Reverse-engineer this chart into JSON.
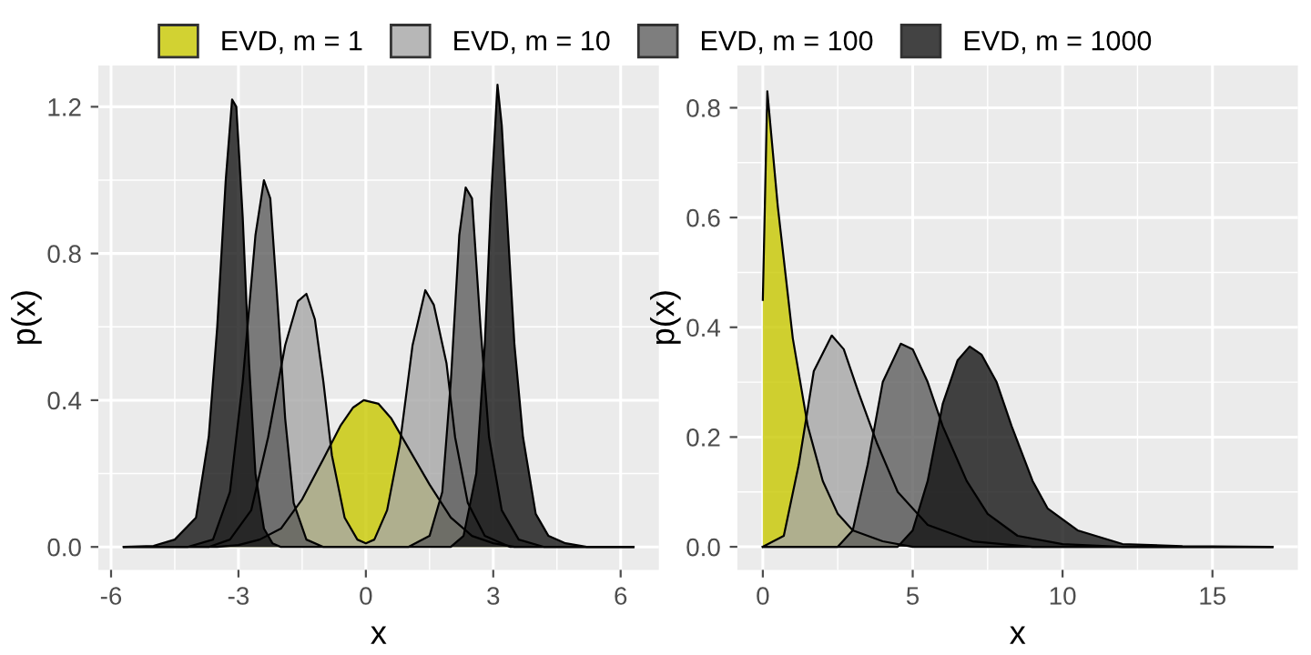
{
  "chart_data": [
    {
      "type": "area",
      "xlabel": "x",
      "ylabel": "p(x)",
      "grid": true,
      "legend": "top",
      "xlim": [
        -6.3,
        6.9
      ],
      "ylim": [
        -0.0625,
        1.3125
      ],
      "xticks": [
        -6,
        -3,
        0,
        3,
        6
      ],
      "yticks": [
        {
          "value": 0,
          "label": "0.0"
        },
        0.4,
        0.8,
        1.2
      ],
      "series": [
        {
          "name": "EVD, m = 1",
          "color": "#c8c800",
          "x": [
            -5.7,
            -3.5,
            -3,
            -2.5,
            -2,
            -1.5,
            -1,
            -0.6,
            -0.3,
            -0.05,
            0.3,
            0.6,
            1.0,
            1.5,
            2.0,
            2.5,
            3.0,
            3.5,
            6.3
          ],
          "values": [
            0,
            0,
            0.005,
            0.02,
            0.05,
            0.13,
            0.24,
            0.33,
            0.38,
            0.4,
            0.39,
            0.35,
            0.27,
            0.17,
            0.08,
            0.03,
            0.01,
            0,
            0
          ]
        },
        {
          "name": "EVD, m = 10",
          "color": "#a6a6a6",
          "x": [
            -5.7,
            -3.7,
            -3.2,
            -2.7,
            -2.3,
            -1.9,
            -1.6,
            -1.4,
            -1.2,
            -1.0,
            -0.8,
            -0.5,
            -0.2,
            0,
            0.2,
            0.5,
            0.8,
            1.1,
            1.4,
            1.6,
            1.9,
            2.1,
            2.4,
            2.8,
            3.4,
            6.3
          ],
          "values": [
            0,
            0,
            0.02,
            0.1,
            0.3,
            0.55,
            0.67,
            0.69,
            0.62,
            0.45,
            0.25,
            0.08,
            0.02,
            0.01,
            0.02,
            0.1,
            0.28,
            0.55,
            0.7,
            0.66,
            0.5,
            0.3,
            0.12,
            0.03,
            0,
            0
          ]
        },
        {
          "name": "EVD, m = 100",
          "color": "#5e5e5e",
          "x": [
            -5.7,
            -4.2,
            -3.6,
            -3.2,
            -2.9,
            -2.6,
            -2.4,
            -2.25,
            -2.1,
            -1.9,
            -1.7,
            -1.4,
            -1.0,
            1.0,
            1.5,
            1.8,
            2.0,
            2.2,
            2.35,
            2.5,
            2.7,
            2.9,
            3.2,
            3.6,
            4.2,
            6.3
          ],
          "values": [
            0,
            0,
            0.02,
            0.15,
            0.45,
            0.85,
            1.0,
            0.95,
            0.7,
            0.35,
            0.12,
            0.02,
            0,
            0,
            0.03,
            0.15,
            0.45,
            0.85,
            0.98,
            0.95,
            0.6,
            0.3,
            0.1,
            0.02,
            0,
            0
          ]
        },
        {
          "name": "EVD, m = 1000",
          "color": "#151515",
          "x": [
            -5.7,
            -5.0,
            -4.5,
            -4.0,
            -3.7,
            -3.5,
            -3.3,
            -3.15,
            -3.05,
            -2.9,
            -2.75,
            -2.6,
            -2.4,
            -2.2,
            -2.0,
            2.0,
            2.3,
            2.6,
            2.8,
            2.95,
            3.1,
            3.2,
            3.35,
            3.5,
            3.7,
            4.0,
            4.3,
            4.7,
            5.2,
            6.3
          ],
          "values": [
            0,
            0.003,
            0.02,
            0.08,
            0.3,
            0.6,
            1.0,
            1.22,
            1.2,
            0.9,
            0.5,
            0.2,
            0.05,
            0.01,
            0,
            0,
            0.03,
            0.2,
            0.55,
            0.95,
            1.26,
            1.15,
            0.85,
            0.55,
            0.3,
            0.09,
            0.03,
            0.01,
            0,
            0
          ]
        }
      ]
    },
    {
      "type": "area",
      "xlabel": "x",
      "ylabel": "p(x)",
      "grid": true,
      "xlim": [
        -0.85,
        17.85
      ],
      "ylim": [
        -0.042,
        0.877
      ],
      "xticks": [
        0,
        5,
        10,
        15
      ],
      "yticks": [
        {
          "value": 0,
          "label": "0.0"
        },
        0.2,
        0.4,
        0.6,
        0.8
      ],
      "series": [
        {
          "color": "#c8c800",
          "x": [
            0,
            0.15,
            0.5,
            1.0,
            1.5,
            2.0,
            2.5,
            3.0,
            4,
            5,
            17
          ],
          "values": [
            0.45,
            0.83,
            0.62,
            0.38,
            0.22,
            0.12,
            0.06,
            0.03,
            0.01,
            0,
            0
          ]
        },
        {
          "color": "#a6a6a6",
          "x": [
            0,
            0.7,
            1.2,
            1.7,
            2.3,
            2.7,
            3.2,
            3.8,
            4.5,
            5.5,
            7,
            9,
            17
          ],
          "values": [
            0,
            0.02,
            0.15,
            0.32,
            0.385,
            0.36,
            0.28,
            0.19,
            0.1,
            0.04,
            0.01,
            0,
            0
          ]
        },
        {
          "color": "#5e5e5e",
          "x": [
            0,
            2.5,
            3.0,
            3.5,
            4.0,
            4.6,
            5.0,
            5.5,
            6.0,
            6.8,
            7.5,
            8.5,
            10,
            12,
            17
          ],
          "values": [
            0,
            0,
            0.03,
            0.15,
            0.3,
            0.37,
            0.36,
            0.3,
            0.22,
            0.12,
            0.06,
            0.02,
            0.005,
            0,
            0
          ]
        },
        {
          "color": "#151515",
          "x": [
            0,
            4.5,
            5.0,
            5.5,
            6.0,
            6.5,
            6.9,
            7.3,
            7.8,
            8.3,
            9.0,
            9.5,
            10.5,
            12,
            14,
            17
          ],
          "values": [
            0,
            0,
            0.03,
            0.12,
            0.26,
            0.34,
            0.365,
            0.35,
            0.3,
            0.22,
            0.12,
            0.07,
            0.03,
            0.005,
            0.001,
            0
          ]
        }
      ]
    }
  ]
}
